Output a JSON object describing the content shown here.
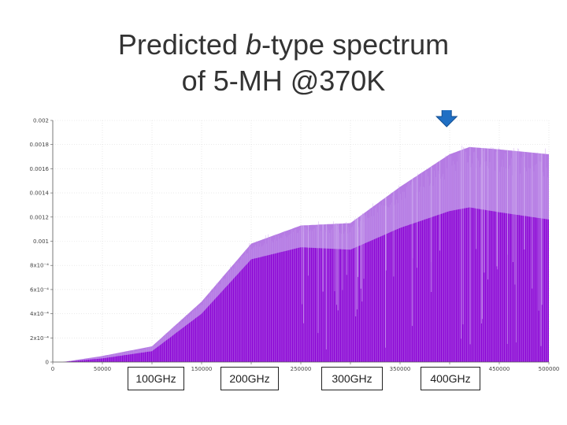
{
  "title": {
    "line1_pre": "Predicted ",
    "line1_italic": "b",
    "line1_post": "-type spectrum",
    "line2": "of 5-MH @370K"
  },
  "colors": {
    "fill_dark": "#8a00d4",
    "fill_light": "#b57be3",
    "spike": "#c69aee",
    "arrow": "#1f6fc4",
    "grid": "#dddddd",
    "axis": "#555555"
  },
  "chart_data": {
    "type": "area",
    "xlim": [
      0,
      500000
    ],
    "ylim": [
      0,
      0.002
    ],
    "x_ticks": [
      0,
      50000,
      100000,
      150000,
      200000,
      250000,
      300000,
      350000,
      400000,
      450000,
      500000
    ],
    "x_tick_labels": [
      "0",
      "50000",
      "100000",
      "150000",
      "200000",
      "250000",
      "300000",
      "350000",
      "400000",
      "450000",
      "500000"
    ],
    "y_ticks": [
      0,
      0.0002,
      0.0004,
      0.0006,
      0.0008,
      0.001,
      0.0012,
      0.0014,
      0.0016,
      0.0018,
      0.002
    ],
    "y_tick_labels": [
      "0",
      "2x10⁻⁴",
      "4x10⁻⁴",
      "6x10⁻⁴",
      "8x10⁻⁴",
      "0.001",
      "0.0012",
      "0.0014",
      "0.0016",
      "0.0018",
      "0.002"
    ],
    "envelope": {
      "x": [
        10000,
        50000,
        100000,
        150000,
        200000,
        250000,
        300000,
        350000,
        400000,
        420000,
        450000,
        500000
      ],
      "upper": [
        0.0,
        5e-05,
        0.00013,
        0.0005,
        0.00098,
        0.00113,
        0.00115,
        0.00145,
        0.00172,
        0.00178,
        0.00176,
        0.00172
      ],
      "lower": [
        0.0,
        3e-05,
        9e-05,
        0.0004,
        0.00085,
        0.00095,
        0.00093,
        0.00111,
        0.00125,
        0.00128,
        0.00124,
        0.00118
      ]
    },
    "marker": {
      "x": 420000,
      "label": "arrow"
    },
    "annotations": [
      "100GHz",
      "200GHz",
      "300GHz",
      "400GHz"
    ],
    "xlabel": "",
    "ylabel": ""
  }
}
